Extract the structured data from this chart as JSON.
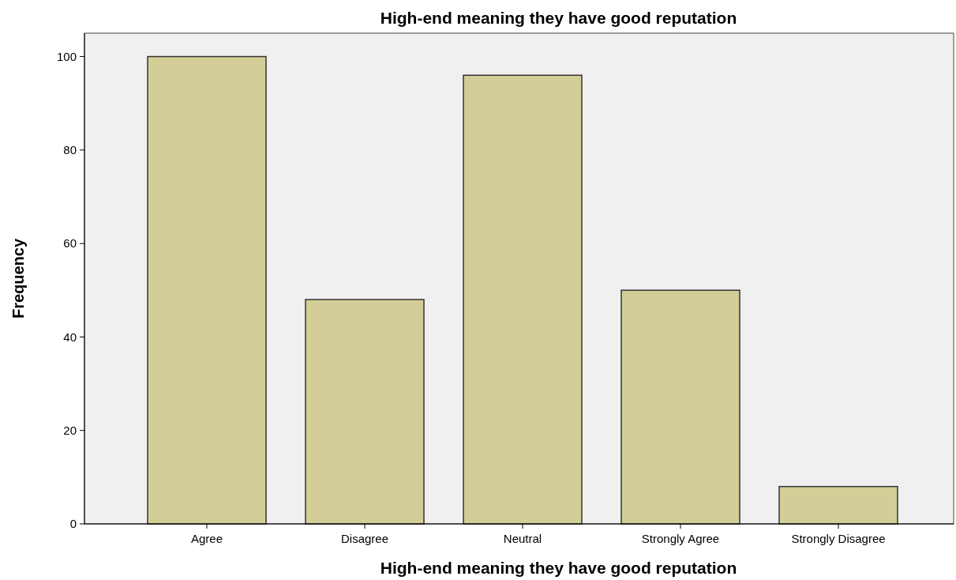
{
  "chart_data": {
    "type": "bar",
    "title": "High-end meaning they have good reputation",
    "xlabel": "High-end meaning they have good reputation",
    "ylabel": "Frequency",
    "categories": [
      "Agree",
      "Disagree",
      "Neutral",
      "Strongly Agree",
      "Strongly Disagree"
    ],
    "values": [
      100,
      48,
      96,
      50,
      8
    ],
    "color": "#d3ce97",
    "ylim": [
      0,
      105
    ],
    "yticks": [
      0,
      20,
      40,
      60,
      80,
      100
    ],
    "grid": false
  }
}
